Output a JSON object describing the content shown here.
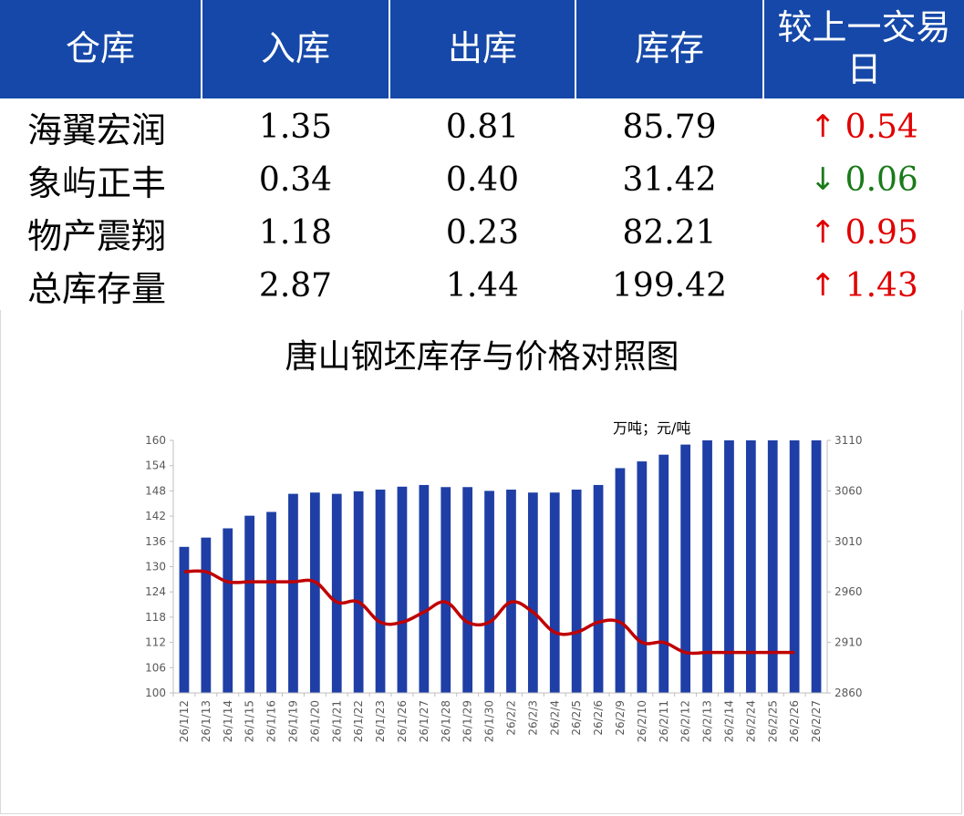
{
  "table": {
    "headers": [
      "仓库",
      "入库",
      "出库",
      "库存",
      "较上一交易日"
    ],
    "rows": [
      {
        "name": "海翼宏润",
        "in": "1.35",
        "out": "0.81",
        "stock": "85.79",
        "dir": "up",
        "arrow": "↑",
        "change": "0.54"
      },
      {
        "name": "象屿正丰",
        "in": "0.34",
        "out": "0.40",
        "stock": "31.42",
        "dir": "down",
        "arrow": "↓",
        "change": "0.06"
      },
      {
        "name": "物产震翔",
        "in": "1.18",
        "out": "0.23",
        "stock": "82.21",
        "dir": "up",
        "arrow": "↑",
        "change": "0.95"
      },
      {
        "name": "总库存量",
        "in": "2.87",
        "out": "1.44",
        "stock": "199.42",
        "dir": "up",
        "arrow": "↑",
        "change": "1.43"
      }
    ]
  },
  "colors": {
    "header_bg": "#1548a8",
    "bar": "#1f3fa6",
    "line": "#c00000",
    "up": "#e00000",
    "down": "#1a7a1a"
  },
  "chart_data": {
    "type": "bar",
    "title": "唐山钢坯库存与价格对照图",
    "unit_label": "万吨；元/吨",
    "categories": [
      "26/1/12",
      "26/1/13",
      "26/1/14",
      "26/1/15",
      "26/1/16",
      "26/1/19",
      "26/1/20",
      "26/1/21",
      "26/1/22",
      "26/1/23",
      "26/1/26",
      "26/1/27",
      "26/1/28",
      "26/1/29",
      "26/1/30",
      "26/2/2",
      "26/2/3",
      "26/2/4",
      "26/2/5",
      "26/2/6",
      "26/2/9",
      "26/2/10",
      "26/2/11",
      "26/2/12",
      "26/2/13",
      "26/2/14",
      "26/2/24",
      "26/2/25",
      "26/2/26",
      "26/2/27"
    ],
    "series": [
      {
        "axis": "left",
        "type": "bar",
        "values": [
          134.7,
          136.9,
          139.1,
          142.1,
          143.0,
          147.3,
          147.6,
          147.3,
          147.9,
          148.3,
          149.0,
          149.4,
          148.9,
          148.9,
          148.0,
          148.3,
          147.6,
          147.6,
          148.3,
          149.4,
          153.4,
          155.0,
          156.6,
          159.0,
          160,
          160,
          160,
          160,
          160,
          160
        ]
      },
      {
        "axis": "right",
        "type": "line",
        "values": [
          2980,
          2980,
          2970,
          2970,
          2970,
          2970,
          2970,
          2950,
          2950,
          2930,
          2930,
          2940,
          2950,
          2930,
          2930,
          2950,
          2940,
          2920,
          2920,
          2930,
          2930,
          2910,
          2910,
          2900,
          2900,
          2900,
          2900,
          2900,
          2900,
          null
        ]
      }
    ],
    "y_left": {
      "min": 100,
      "max": 160,
      "ticks": [
        100,
        106,
        112,
        118,
        124,
        130,
        136,
        142,
        148,
        154,
        160
      ]
    },
    "y_right": {
      "min": 2860,
      "max": 3110,
      "ticks": [
        2860,
        2910,
        2960,
        3010,
        3060,
        3110
      ]
    },
    "grid": false
  }
}
